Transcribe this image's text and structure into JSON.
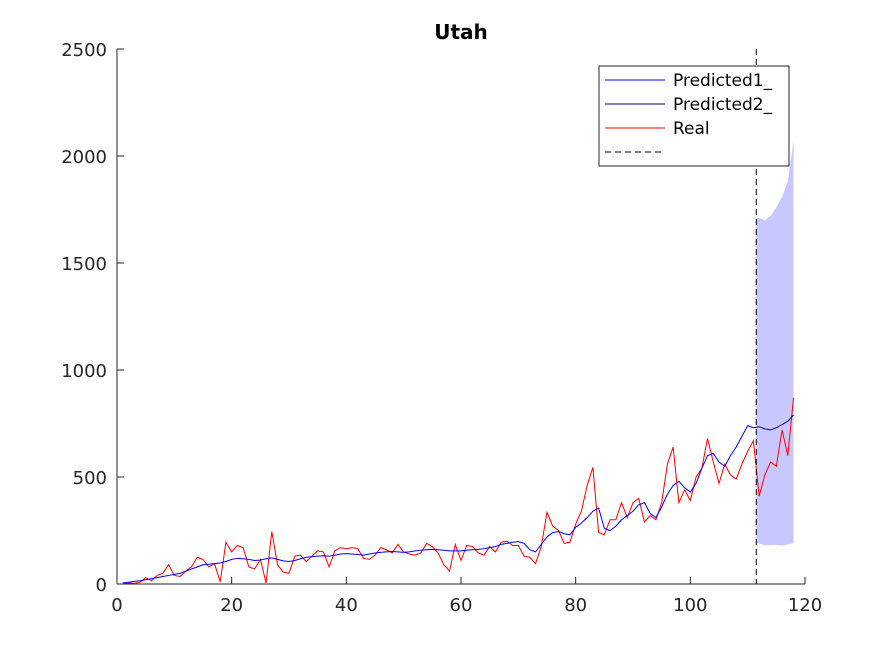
{
  "chart_data": {
    "type": "line",
    "title": "Utah",
    "xlabel": "",
    "ylabel": "",
    "xlim": [
      0,
      120
    ],
    "ylim": [
      0,
      2500
    ],
    "xticks": [
      0,
      20,
      40,
      60,
      80,
      100,
      120
    ],
    "yticks": [
      0,
      500,
      1000,
      1500,
      2000,
      2500
    ],
    "grid": false,
    "legend_position": "top-right",
    "vline_x": 111.5,
    "series": [
      {
        "name": "Predicted1_",
        "color": "#0000ff",
        "x": [
          1,
          2,
          3,
          4,
          5,
          6,
          7,
          8,
          9,
          10,
          11,
          12,
          13,
          14,
          15,
          16,
          17,
          18,
          19,
          20,
          21,
          22,
          23,
          24,
          25,
          26,
          27,
          28,
          29,
          30,
          31,
          32,
          33,
          34,
          35,
          36,
          37,
          38,
          39,
          40,
          41,
          42,
          43,
          44,
          45,
          46,
          47,
          48,
          49,
          50,
          51,
          52,
          53,
          54,
          55,
          56,
          57,
          58,
          59,
          60,
          61,
          62,
          63,
          64,
          65,
          66,
          67,
          68,
          69,
          70,
          71,
          72,
          73,
          74,
          75,
          76,
          77,
          78,
          79,
          80,
          81,
          82,
          83,
          84,
          85,
          86,
          87,
          88,
          89,
          90,
          91,
          92,
          93,
          94,
          95,
          96,
          97,
          98,
          99,
          100,
          101,
          102,
          103,
          104,
          105,
          106,
          107,
          108,
          109,
          110,
          111
        ],
        "y": [
          5,
          8,
          12,
          15,
          20,
          25,
          30,
          35,
          40,
          45,
          50,
          60,
          70,
          80,
          90,
          92,
          95,
          98,
          105,
          115,
          120,
          118,
          115,
          110,
          112,
          118,
          122,
          115,
          108,
          105,
          110,
          118,
          125,
          128,
          130,
          132,
          130,
          135,
          140,
          142,
          140,
          138,
          135,
          140,
          145,
          148,
          150,
          152,
          150,
          148,
          150,
          155,
          158,
          160,
          162,
          160,
          158,
          155,
          155,
          155,
          158,
          160,
          162,
          165,
          170,
          175,
          185,
          190,
          195,
          198,
          190,
          160,
          150,
          185,
          220,
          240,
          245,
          235,
          230,
          265,
          285,
          310,
          340,
          355,
          260,
          250,
          270,
          300,
          320,
          340,
          370,
          380,
          330,
          310,
          360,
          420,
          460,
          480,
          450,
          430,
          470,
          540,
          600,
          610,
          570,
          550,
          600,
          640,
          690,
          740,
          730
        ]
      },
      {
        "name": "Predicted2_",
        "color": "#00008b",
        "x": [
          111,
          112,
          113,
          114,
          115,
          116,
          117,
          118
        ],
        "y": [
          730,
          735,
          725,
          720,
          730,
          745,
          760,
          790
        ]
      },
      {
        "name": "Real",
        "color": "#ff0000",
        "x": [
          1,
          2,
          3,
          4,
          5,
          6,
          7,
          8,
          9,
          10,
          11,
          12,
          13,
          14,
          15,
          16,
          17,
          18,
          19,
          20,
          21,
          22,
          23,
          24,
          25,
          26,
          27,
          28,
          29,
          30,
          31,
          32,
          33,
          34,
          35,
          36,
          37,
          38,
          39,
          40,
          41,
          42,
          43,
          44,
          45,
          46,
          47,
          48,
          49,
          50,
          51,
          52,
          53,
          54,
          55,
          56,
          57,
          58,
          59,
          60,
          61,
          62,
          63,
          64,
          65,
          66,
          67,
          68,
          69,
          70,
          71,
          72,
          73,
          74,
          75,
          76,
          77,
          78,
          79,
          80,
          81,
          82,
          83,
          84,
          85,
          86,
          87,
          88,
          89,
          90,
          91,
          92,
          93,
          94,
          95,
          96,
          97,
          98,
          99,
          100,
          101,
          102,
          103,
          104,
          105,
          106,
          107,
          108,
          109,
          110,
          111,
          112,
          113,
          114,
          115,
          116,
          117,
          118
        ],
        "y": [
          0,
          5,
          3,
          8,
          30,
          15,
          40,
          50,
          90,
          40,
          35,
          60,
          80,
          125,
          115,
          80,
          95,
          10,
          195,
          150,
          180,
          170,
          80,
          70,
          115,
          5,
          245,
          90,
          55,
          50,
          130,
          135,
          105,
          130,
          155,
          150,
          80,
          155,
          170,
          165,
          170,
          165,
          120,
          115,
          135,
          170,
          160,
          145,
          185,
          150,
          140,
          135,
          145,
          190,
          175,
          145,
          90,
          60,
          185,
          110,
          180,
          175,
          145,
          135,
          175,
          150,
          195,
          200,
          180,
          180,
          130,
          125,
          95,
          175,
          335,
          270,
          250,
          190,
          195,
          280,
          340,
          460,
          545,
          240,
          230,
          300,
          300,
          380,
          310,
          380,
          400,
          290,
          320,
          300,
          380,
          560,
          640,
          380,
          440,
          390,
          500,
          540,
          680,
          570,
          470,
          560,
          510,
          490,
          560,
          620,
          670,
          410,
          510,
          570,
          550,
          720,
          600,
          870
        ]
      }
    ],
    "confidence_band": {
      "color": "#c8c8ff",
      "x": [
        111.5,
        112,
        113,
        114,
        115,
        116,
        117,
        118
      ],
      "upper": [
        1710,
        1710,
        1700,
        1720,
        1760,
        1810,
        1880,
        2070
      ],
      "lower": [
        190,
        190,
        180,
        182,
        183,
        180,
        185,
        190
      ]
    },
    "legend": {
      "entries": [
        {
          "label": "Predicted1_",
          "color": "#0000ff",
          "dash": false
        },
        {
          "label": "Predicted2_",
          "color": "#00008b",
          "dash": false
        },
        {
          "label": "Real",
          "color": "#ff0000",
          "dash": false
        },
        {
          "label": "",
          "color": "#000000",
          "dash": true
        }
      ]
    }
  }
}
